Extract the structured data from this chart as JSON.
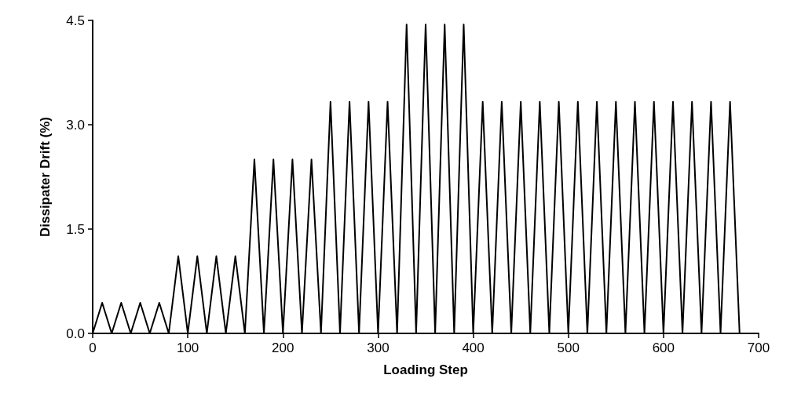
{
  "chart_data": {
    "type": "line",
    "xlabel": "Loading Step",
    "ylabel": "Dissipater Drift (%)",
    "x": [
      0,
      10,
      20,
      30,
      40,
      50,
      60,
      70,
      80,
      90,
      100,
      110,
      120,
      130,
      140,
      150,
      160,
      170,
      180,
      190,
      200,
      210,
      220,
      230,
      240,
      250,
      260,
      270,
      280,
      290,
      300,
      310,
      320,
      330,
      340,
      350,
      360,
      370,
      380,
      390,
      400,
      410,
      420,
      430,
      440,
      450,
      460,
      470,
      480,
      490,
      500,
      510,
      520,
      530,
      540,
      550,
      560,
      570,
      580,
      590,
      600,
      610,
      620,
      630,
      640,
      650,
      660,
      670,
      680
    ],
    "series": [
      {
        "color": "#000000",
        "values": [
          0,
          0.44,
          0,
          0.44,
          0,
          0.44,
          0,
          0.44,
          0,
          1.11,
          0,
          1.11,
          0,
          1.11,
          0,
          1.11,
          0,
          2.5,
          0,
          2.5,
          0,
          2.5,
          0,
          2.5,
          0,
          3.33,
          0,
          3.33,
          0,
          3.33,
          0,
          3.33,
          0,
          4.44,
          0,
          4.44,
          0,
          4.44,
          0,
          4.44,
          0,
          3.33,
          0,
          3.33,
          0,
          3.33,
          0,
          3.33,
          0,
          3.33,
          0,
          3.33,
          0,
          3.33,
          0,
          3.33,
          0,
          3.33,
          0,
          3.33,
          0,
          3.33,
          0,
          3.33,
          0,
          3.33,
          0,
          3.33,
          0
        ]
      }
    ],
    "xlim": [
      0,
      700
    ],
    "xticks": [
      0,
      100,
      200,
      300,
      400,
      500,
      600,
      700
    ],
    "ylim": [
      0,
      4.5
    ],
    "yticks": [
      {
        "value": 0,
        "label": "0.0"
      },
      {
        "value": 1.5,
        "label": "1.5"
      },
      {
        "value": 3,
        "label": "3.0"
      },
      {
        "value": 4.5,
        "label": "4.5"
      }
    ],
    "grid": false,
    "marker": "none",
    "line_style": "solid"
  }
}
